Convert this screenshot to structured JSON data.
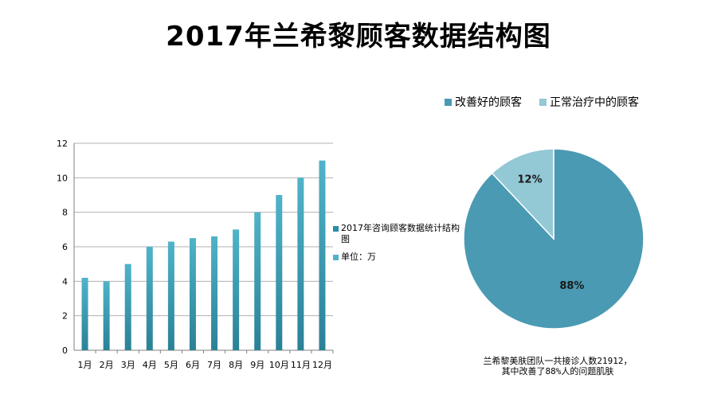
{
  "title": "2017年兰希黎顾客数据结构图",
  "chart_data": [
    {
      "type": "bar",
      "categories": [
        "1月",
        "2月",
        "3月",
        "4月",
        "5月",
        "6月",
        "7月",
        "8月",
        "9月",
        "10月",
        "11月",
        "12月"
      ],
      "series": [
        {
          "name": "2017年咨询顾客数据统计结构图",
          "values": [
            4.2,
            4.0,
            5.0,
            6.0,
            6.3,
            6.5,
            6.6,
            7.0,
            8.0,
            9.0,
            10.0,
            11.0
          ]
        }
      ],
      "ylim": [
        0,
        12
      ],
      "yticks": [
        0,
        2,
        4,
        6,
        8,
        10,
        12
      ],
      "grid": true,
      "legend_position": "right",
      "legend": [
        "2017年咨询顾客数据统计结构图",
        "单位：万"
      ],
      "colors": {
        "bar_top": "#4fb3c9",
        "bar_bottom": "#2a8196",
        "grid": "#b0b0b0"
      }
    },
    {
      "type": "pie",
      "slices": [
        {
          "label": "改善好的顾客",
          "value": 88,
          "display": "88%",
          "color": "#4a9ab3"
        },
        {
          "label": "正常治疗中的顾客",
          "value": 12,
          "display": "12%",
          "color": "#93c8d5"
        }
      ],
      "legend_position": "top"
    }
  ],
  "caption": {
    "line1": "兰希黎美肤团队一共接诊人数21912，",
    "line2": "其中改善了88%人的问题肌肤"
  }
}
